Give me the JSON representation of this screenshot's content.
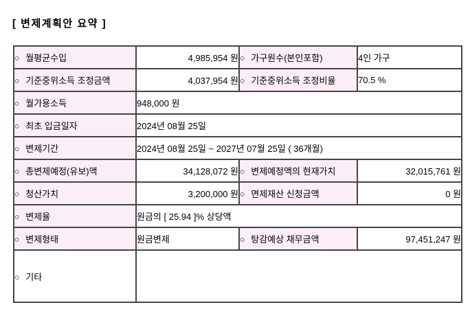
{
  "page": {
    "title": "[ 변제계획안 요약 ]"
  },
  "colors": {
    "label_bg": "#fceef7",
    "border": "#454545",
    "text": "#000000",
    "page_bg": "#ffffff"
  },
  "summary_table": {
    "bullet": "○",
    "rows": [
      {
        "cells": [
          {
            "kind": "label",
            "text": "월평균수입"
          },
          {
            "kind": "value",
            "text": "4,985,954 원",
            "align": "right"
          },
          {
            "kind": "label",
            "text": "가구원수(본인포함)"
          },
          {
            "kind": "value",
            "text": "4인 가구",
            "align": "left"
          }
        ]
      },
      {
        "cells": [
          {
            "kind": "label",
            "text": "기준중위소득 조정금액"
          },
          {
            "kind": "value",
            "text": "4,037,954 원",
            "align": "right"
          },
          {
            "kind": "label",
            "text": "기준중위소득 조정비율"
          },
          {
            "kind": "value",
            "text": "70.5 %",
            "align": "left"
          }
        ]
      },
      {
        "cells": [
          {
            "kind": "label",
            "text": "월가용소득"
          },
          {
            "kind": "value",
            "text": "948,000 원",
            "align": "left",
            "colspan": 3
          }
        ]
      },
      {
        "cells": [
          {
            "kind": "label",
            "text": "최초 입금일자"
          },
          {
            "kind": "value",
            "text": "2024년 08월 25일",
            "align": "left",
            "colspan": 3
          }
        ]
      },
      {
        "cells": [
          {
            "kind": "label",
            "text": "변제기간"
          },
          {
            "kind": "value",
            "text": "2024년 08월 25일 ~ 2027년 07월 25일 ( 36개월)",
            "align": "left",
            "colspan": 3
          }
        ]
      },
      {
        "cells": [
          {
            "kind": "label",
            "text": "총변제예정(유보)액"
          },
          {
            "kind": "value",
            "text": "34,128,072 원",
            "align": "right"
          },
          {
            "kind": "label",
            "text": "변제예정액의 현재가치"
          },
          {
            "kind": "value",
            "text": "32,015,761 원",
            "align": "right"
          }
        ]
      },
      {
        "cells": [
          {
            "kind": "label",
            "text": "청산가치"
          },
          {
            "kind": "value",
            "text": "3,200,000 원",
            "align": "right"
          },
          {
            "kind": "label",
            "text": "면제재산 신청금액"
          },
          {
            "kind": "value",
            "text": "0 원",
            "align": "right"
          }
        ]
      },
      {
        "cells": [
          {
            "kind": "label",
            "text": "변제율"
          },
          {
            "kind": "value",
            "text": "원금의 [ 25.94 ]% 상당액",
            "align": "left",
            "colspan": 3
          }
        ]
      },
      {
        "cells": [
          {
            "kind": "label",
            "text": "변제형태"
          },
          {
            "kind": "value",
            "text": "원금변제",
            "align": "left"
          },
          {
            "kind": "label",
            "text": "탕감예상 채무금액"
          },
          {
            "kind": "value",
            "text": "97,451,247 원",
            "align": "right"
          }
        ]
      },
      {
        "tall": true,
        "cells": [
          {
            "kind": "label",
            "text": "기타",
            "plain": true
          },
          {
            "kind": "value",
            "text": "",
            "align": "left",
            "colspan": 3
          }
        ]
      }
    ]
  }
}
